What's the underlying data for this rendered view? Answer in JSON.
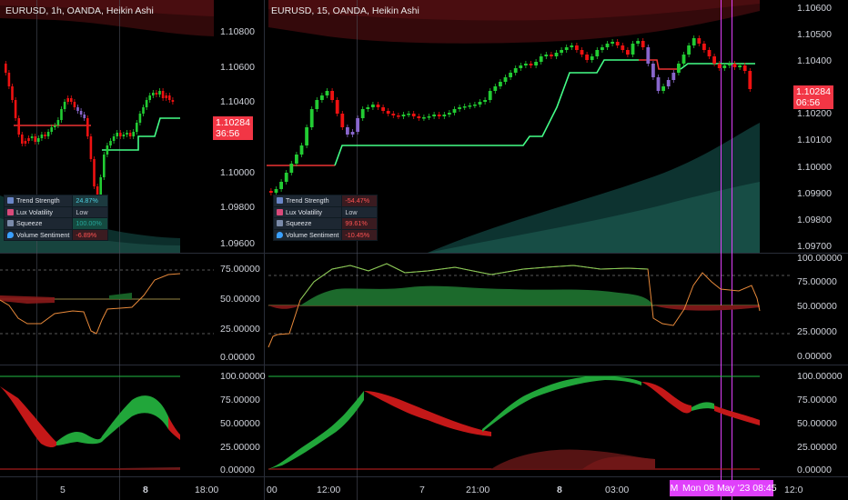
{
  "left_chart": {
    "title": "EURUSD, 1h, OANDA, Heikin Ashi",
    "price_axis": [
      "1.10800",
      "1.10600",
      "1.10400",
      "1.10000",
      "1.09800",
      "1.09600"
    ],
    "last_price": "1.10284",
    "countdown": "36:56",
    "osc1_axis": [
      "75.00000",
      "50.00000",
      "25.00000",
      "0.00000"
    ],
    "osc2_axis": [
      "100.00000",
      "75.00000",
      "50.00000",
      "25.00000",
      "0.00000"
    ],
    "time_axis": [
      "5",
      "8",
      "18:00"
    ]
  },
  "right_chart": {
    "title": "EURUSD, 15, OANDA, Heikin Ashi",
    "price_axis": [
      "1.10600",
      "1.10500",
      "1.10400",
      "1.10200",
      "1.10100",
      "1.10000",
      "1.09900",
      "1.09800",
      "1.09700"
    ],
    "last_price": "1.10284",
    "countdown": "06:56",
    "osc1_axis": [
      "100.00000",
      "75.00000",
      "50.00000",
      "25.00000",
      "0.00000"
    ],
    "osc2_axis": [
      "100.00000",
      "75.00000",
      "50.00000",
      "25.00000",
      "0.00000"
    ],
    "time_axis": [
      "00",
      "12:00",
      "7",
      "21:00",
      "8",
      "03:00",
      "12:0"
    ],
    "crosshair_date": "Mon 08 May '23   08:45",
    "crosshair_date_prefix": "M"
  },
  "left_table": [
    {
      "label": "Trend Strength",
      "value": "24.87%",
      "icon": "gear-icon",
      "value_color": "#4dd0e1"
    },
    {
      "label": "Lux Volatility",
      "value": "Low",
      "icon": "chart-icon",
      "value_color": "#c8ccd4"
    },
    {
      "label": "Squeeze",
      "value": "100.00%",
      "icon": "squeeze-icon",
      "value_color": "#26a69a"
    },
    {
      "label": "Volume Sentiment",
      "value": "-6.89%",
      "icon": "drop-icon",
      "value_color": "#ff5252"
    }
  ],
  "right_table": [
    {
      "label": "Trend Strength",
      "value": "-54.47%",
      "icon": "gear-icon",
      "value_color": "#ff5252"
    },
    {
      "label": "Lux Volatility",
      "value": "Low",
      "icon": "chart-icon",
      "value_color": "#c8ccd4"
    },
    {
      "label": "Squeeze",
      "value": "99.61%",
      "icon": "squeeze-icon",
      "value_color": "#ff5252"
    },
    {
      "label": "Volume Sentiment",
      "value": "-10.45%",
      "icon": "drop-icon",
      "value_color": "#ff5252"
    }
  ],
  "colors": {
    "bull": "#22cc33",
    "bear": "#ee1111",
    "neutral": "#8866cc",
    "trail": "#44ff88",
    "price_tag": "#f23645",
    "crosshair": "#e040fb"
  }
}
